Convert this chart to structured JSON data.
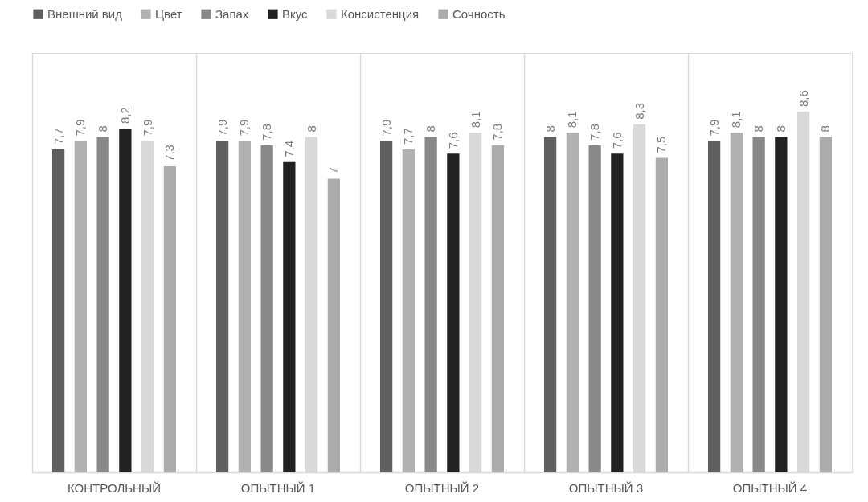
{
  "chart_data": {
    "type": "bar",
    "categories": [
      "КОНТРОЛЬНЫЙ",
      "ОПЫТНЫЙ 1",
      "ОПЫТНЫЙ 2",
      "ОПЫТНЫЙ 3",
      "ОПЫТНЫЙ 4"
    ],
    "ylim": [
      0,
      10
    ],
    "legend": "top",
    "grid": "x",
    "series": [
      {
        "name": "Внешний вид",
        "color": "#5f5f5f",
        "values": [
          7.7,
          7.9,
          7.9,
          8,
          7.9
        ],
        "value_labels": [
          "7,7",
          "7,9",
          "7,9",
          "8",
          "7,9"
        ]
      },
      {
        "name": "Цвет",
        "color": "#b1b1b1",
        "values": [
          7.9,
          7.9,
          7.7,
          8.1,
          8.1
        ],
        "value_labels": [
          "7,9",
          "7,9",
          "7,7",
          "8,1",
          "8,1"
        ]
      },
      {
        "name": "Запах",
        "color": "#898989",
        "values": [
          8,
          7.8,
          8,
          7.8,
          8
        ],
        "value_labels": [
          "8",
          "7,8",
          "8",
          "7,8",
          "8"
        ]
      },
      {
        "name": "Вкус",
        "color": "#222222",
        "values": [
          8.2,
          7.4,
          7.6,
          7.6,
          8
        ],
        "value_labels": [
          "8,2",
          "7,4",
          "7,6",
          "7,6",
          "8"
        ]
      },
      {
        "name": "Консистенция",
        "color": "#d9d9d9",
        "values": [
          7.9,
          8,
          8.1,
          8.3,
          8.6
        ],
        "value_labels": [
          "7,9",
          "8",
          "8,1",
          "8,3",
          "8,6"
        ]
      },
      {
        "name": "Сочность",
        "color": "#ababab",
        "values": [
          7.3,
          7,
          7.8,
          7.5,
          8
        ],
        "value_labels": [
          "7,3",
          "7",
          "7,8",
          "7,5",
          "8"
        ]
      }
    ]
  }
}
